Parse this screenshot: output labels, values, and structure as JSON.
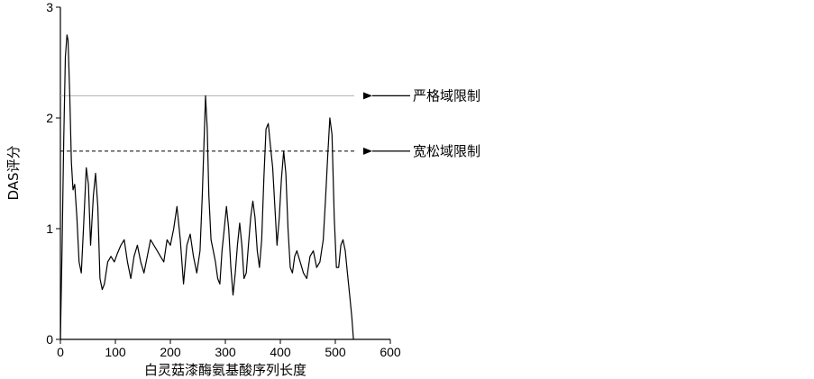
{
  "chart_data": {
    "type": "line",
    "title": "",
    "xlabel": "白灵菇漆酶氨基酸序列长度",
    "ylabel": "DAS评分",
    "xlim": [
      0,
      600
    ],
    "ylim": [
      0,
      3
    ],
    "x_ticks": [
      0,
      100,
      200,
      300,
      400,
      500,
      600
    ],
    "y_ticks": [
      0,
      1,
      2,
      3
    ],
    "grid": false,
    "legend": "none",
    "colors": {
      "line": "#000000",
      "strict": "#b0b0b0",
      "loose": "#000000"
    },
    "thresholds": [
      {
        "name": "strict",
        "label": "严格域限制",
        "y": 2.2,
        "style": "solid"
      },
      {
        "name": "loose",
        "label": "宽松域限制",
        "y": 1.7,
        "style": "dashed"
      }
    ],
    "series": [
      {
        "x": [
          0,
          3,
          6,
          9,
          12,
          14,
          17,
          20,
          23,
          26,
          30,
          34,
          38,
          42,
          47,
          51,
          55,
          60,
          64,
          68,
          72,
          76,
          80,
          86,
          92,
          98,
          104,
          110,
          116,
          122,
          128,
          134,
          140,
          146,
          152,
          158,
          164,
          170,
          176,
          182,
          188,
          194,
          200,
          206,
          212,
          218,
          224,
          230,
          236,
          242,
          248,
          254,
          258,
          261,
          264,
          267,
          270,
          274,
          278,
          282,
          286,
          290,
          294,
          298,
          302,
          306,
          310,
          314,
          318,
          322,
          326,
          330,
          334,
          338,
          342,
          346,
          350,
          354,
          358,
          362,
          366,
          370,
          374,
          378,
          382,
          386,
          390,
          394,
          398,
          402,
          406,
          410,
          414,
          418,
          422,
          426,
          430,
          436,
          442,
          448,
          454,
          460,
          466,
          472,
          478,
          482,
          486,
          490,
          494,
          498,
          502,
          506,
          510,
          514,
          518,
          522,
          526,
          530,
          533
        ],
        "values": [
          0.0,
          0.8,
          1.8,
          2.55,
          2.75,
          2.7,
          2.2,
          1.6,
          1.35,
          1.4,
          1.1,
          0.7,
          0.6,
          1.0,
          1.55,
          1.4,
          0.85,
          1.3,
          1.5,
          1.2,
          0.55,
          0.45,
          0.5,
          0.7,
          0.75,
          0.7,
          0.78,
          0.85,
          0.9,
          0.7,
          0.55,
          0.75,
          0.85,
          0.7,
          0.6,
          0.75,
          0.9,
          0.85,
          0.8,
          0.75,
          0.7,
          0.9,
          0.85,
          1.0,
          1.2,
          0.9,
          0.5,
          0.85,
          0.95,
          0.75,
          0.6,
          0.8,
          1.3,
          1.75,
          2.2,
          1.9,
          1.3,
          0.9,
          0.8,
          0.7,
          0.55,
          0.5,
          0.8,
          1.0,
          1.2,
          1.0,
          0.65,
          0.4,
          0.6,
          0.85,
          1.05,
          0.85,
          0.55,
          0.6,
          0.85,
          1.1,
          1.25,
          1.1,
          0.8,
          0.65,
          0.9,
          1.45,
          1.9,
          1.95,
          1.75,
          1.55,
          1.2,
          0.85,
          1.1,
          1.45,
          1.7,
          1.5,
          1.0,
          0.65,
          0.6,
          0.75,
          0.8,
          0.7,
          0.6,
          0.55,
          0.75,
          0.8,
          0.65,
          0.7,
          0.9,
          1.25,
          1.65,
          2.0,
          1.85,
          1.1,
          0.65,
          0.65,
          0.85,
          0.9,
          0.8,
          0.6,
          0.4,
          0.2,
          0.0
        ]
      }
    ]
  }
}
